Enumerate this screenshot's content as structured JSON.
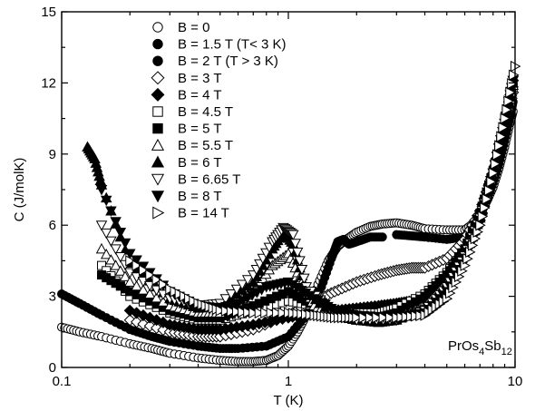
{
  "chart_data": {
    "type": "scatter",
    "xlabel": "T (K)",
    "ylabel": "C (J/molK)",
    "xscale": "log",
    "xlim": [
      0.1,
      10
    ],
    "ylim": [
      0,
      15
    ],
    "xticks": [
      0.1,
      1,
      10
    ],
    "xtick_labels": [
      "0.1",
      "1",
      "10"
    ],
    "yticks": [
      0,
      3,
      6,
      9,
      12,
      15
    ],
    "ytick_labels": [
      "0",
      "3",
      "6",
      "9",
      "12",
      "15"
    ],
    "grid": false,
    "legend_position": "top-left",
    "annotation": {
      "base": "PrOs",
      "sub1": "4",
      "mid": "Sb",
      "sub2": "12"
    },
    "series": [
      {
        "name": "B = 0",
        "marker": "circle",
        "filled": false,
        "x": [
          0.1,
          0.12,
          0.15,
          0.2,
          0.25,
          0.3,
          0.4,
          0.5,
          0.6,
          0.7,
          0.8,
          0.9,
          1.0,
          1.1,
          1.2,
          1.35,
          1.5,
          1.65,
          1.8,
          2.0,
          2.3,
          2.6,
          3.0,
          3.5,
          4.0,
          5.0,
          6.0,
          6.8,
          7.5,
          8.0,
          8.5,
          9.0,
          9.5,
          9.8
        ],
        "y": [
          1.7,
          1.5,
          1.3,
          1.0,
          0.8,
          0.6,
          0.4,
          0.3,
          0.25,
          0.25,
          0.3,
          0.5,
          0.9,
          1.5,
          2.2,
          3.5,
          4.5,
          5.1,
          5.4,
          5.7,
          5.95,
          6.05,
          6.1,
          6.0,
          5.85,
          5.8,
          5.8,
          6.2,
          7.0,
          7.6,
          8.4,
          9.3,
          10.3,
          10.8
        ]
      },
      {
        "name": "B = 1.5 T (T< 3 K)",
        "marker": "circle",
        "filled": true,
        "x": [
          0.1,
          0.12,
          0.15,
          0.2,
          0.25,
          0.3,
          0.4,
          0.5,
          0.6,
          0.8,
          1.0,
          1.2,
          1.4,
          1.55,
          1.65,
          1.75,
          1.85,
          2.0,
          2.3,
          2.6
        ],
        "y": [
          3.1,
          2.7,
          2.2,
          1.6,
          1.3,
          1.1,
          0.9,
          0.8,
          0.8,
          0.9,
          1.3,
          2.2,
          3.4,
          4.6,
          5.3,
          5.4,
          5.2,
          5.3,
          5.5,
          5.5
        ]
      },
      {
        "name": "B = 2 T (T > 3 K)",
        "marker": "circle",
        "filled": true,
        "x": [
          3.0,
          3.5,
          4.0,
          5.0,
          6.0,
          7.0,
          7.5,
          8.0,
          8.5,
          9.0,
          9.5,
          9.8
        ],
        "y": [
          5.6,
          5.55,
          5.5,
          5.4,
          5.5,
          6.4,
          7.1,
          7.8,
          8.6,
          9.6,
          10.6,
          11.2
        ]
      },
      {
        "name": "B = 3 T",
        "marker": "diamond",
        "filled": false,
        "x": [
          0.2,
          0.3,
          0.4,
          0.5,
          0.7,
          1.0,
          1.3,
          1.6,
          2.0,
          2.5,
          3.0,
          3.5,
          4.0,
          5.0,
          6.0,
          7.0,
          8.0,
          9.0,
          9.8
        ],
        "y": [
          2.0,
          1.5,
          1.3,
          1.3,
          1.6,
          2.2,
          2.8,
          3.2,
          3.6,
          3.9,
          4.1,
          4.2,
          4.2,
          4.6,
          5.4,
          6.6,
          8.2,
          10.1,
          11.6
        ]
      },
      {
        "name": "B = 4 T",
        "marker": "diamond",
        "filled": true,
        "x": [
          0.2,
          0.3,
          0.4,
          0.5,
          0.7,
          1.0,
          1.3,
          1.6,
          2.0,
          2.5,
          3.0,
          3.5,
          4.0,
          5.0,
          6.0,
          7.0,
          8.0,
          9.0,
          9.8
        ],
        "y": [
          2.4,
          1.8,
          1.6,
          1.6,
          1.8,
          2.1,
          2.3,
          2.4,
          2.5,
          2.6,
          2.7,
          2.8,
          3.0,
          3.6,
          4.6,
          6.2,
          8.0,
          10.3,
          12.1
        ]
      },
      {
        "name": "B = 4.5 T",
        "marker": "square",
        "filled": false,
        "x": [
          0.15,
          0.2,
          0.3,
          0.4,
          0.5,
          0.7,
          1.0,
          1.3,
          1.6,
          2.0,
          2.5,
          3.0,
          4.0,
          5.0,
          6.0,
          7.0,
          8.0,
          9.0,
          9.8
        ],
        "y": [
          4.3,
          3.0,
          2.3,
          2.0,
          2.0,
          2.4,
          2.8,
          2.6,
          2.4,
          2.3,
          2.3,
          2.5,
          3.1,
          4.0,
          5.0,
          6.4,
          8.2,
          10.2,
          11.8
        ]
      },
      {
        "name": "B = 5 T",
        "marker": "square",
        "filled": true,
        "x": [
          0.15,
          0.2,
          0.3,
          0.4,
          0.5,
          0.7,
          1.0,
          1.3,
          1.6,
          2.0,
          2.5,
          3.0,
          4.0,
          5.0,
          6.0,
          7.0,
          8.0,
          9.0,
          9.8
        ],
        "y": [
          3.9,
          3.2,
          2.4,
          2.1,
          2.1,
          2.6,
          3.2,
          2.6,
          2.3,
          2.1,
          2.1,
          2.3,
          3.0,
          3.9,
          5.0,
          6.5,
          8.3,
          10.3,
          11.9
        ]
      },
      {
        "name": "B = 5.5 T",
        "marker": "triangle-up",
        "filled": false,
        "x": [
          0.15,
          0.2,
          0.3,
          0.4,
          0.5,
          0.7,
          0.85,
          1.0,
          1.15,
          1.3,
          1.6,
          2.0,
          2.5,
          3.0,
          4.0,
          5.0,
          6.0,
          7.0,
          8.0,
          9.0,
          9.8
        ],
        "y": [
          5.0,
          3.6,
          2.6,
          2.3,
          2.3,
          3.2,
          4.3,
          4.8,
          3.6,
          2.6,
          2.2,
          2.0,
          2.0,
          2.1,
          2.6,
          3.6,
          4.8,
          6.4,
          8.2,
          10.2,
          11.9
        ]
      },
      {
        "name": "B = 6 T",
        "marker": "triangle-up",
        "filled": true,
        "x": [
          0.13,
          0.14,
          0.15,
          0.2,
          0.3,
          0.4,
          0.5,
          0.7,
          0.85,
          0.95,
          1.05,
          1.2,
          1.6,
          2.0,
          2.5,
          3.0,
          4.0,
          5.0,
          6.0,
          7.0,
          8.0,
          9.0,
          9.8
        ],
        "y": [
          9.3,
          8.8,
          7.7,
          4.4,
          2.9,
          2.5,
          2.6,
          3.6,
          5.0,
          5.7,
          5.2,
          3.2,
          2.2,
          2.0,
          1.9,
          2.0,
          2.5,
          3.4,
          4.7,
          6.3,
          8.1,
          10.2,
          12.0
        ]
      },
      {
        "name": "B = 6.65 T",
        "marker": "triangle-down",
        "filled": false,
        "x": [
          0.15,
          0.2,
          0.3,
          0.4,
          0.5,
          0.7,
          0.85,
          0.95,
          1.05,
          1.2,
          1.6,
          2.0,
          3.0,
          4.0,
          5.0,
          6.0,
          7.0,
          8.0,
          9.0,
          9.8
        ],
        "y": [
          6.0,
          4.0,
          2.9,
          2.6,
          2.7,
          3.9,
          5.3,
          5.9,
          5.6,
          3.4,
          2.3,
          2.0,
          2.0,
          2.4,
          3.4,
          4.7,
          6.3,
          8.2,
          10.3,
          12.1
        ]
      },
      {
        "name": "B = 8 T",
        "marker": "triangle-down",
        "filled": true,
        "x": [
          0.15,
          0.2,
          0.3,
          0.4,
          0.5,
          0.6,
          0.8,
          1.0,
          1.3,
          1.6,
          2.0,
          3.0,
          4.0,
          5.0,
          6.0,
          7.0,
          8.0,
          9.0,
          9.8
        ],
        "y": [
          7.5,
          4.8,
          3.2,
          2.6,
          2.5,
          2.7,
          3.4,
          3.6,
          2.9,
          2.4,
          2.2,
          2.1,
          2.3,
          3.2,
          4.6,
          6.2,
          8.2,
          10.3,
          12.1
        ]
      },
      {
        "name": "B = 14 T",
        "marker": "triangle-right",
        "filled": false,
        "x": [
          0.2,
          0.3,
          0.4,
          0.5,
          0.7,
          1.0,
          1.3,
          1.6,
          2.0,
          3.0,
          4.0,
          5.0,
          6.0,
          7.0,
          8.0,
          9.0,
          10.0
        ],
        "y": [
          4.5,
          3.3,
          2.7,
          2.4,
          2.3,
          2.3,
          2.2,
          2.1,
          2.1,
          2.1,
          2.2,
          2.9,
          4.3,
          6.0,
          8.2,
          10.5,
          12.7
        ]
      }
    ]
  }
}
